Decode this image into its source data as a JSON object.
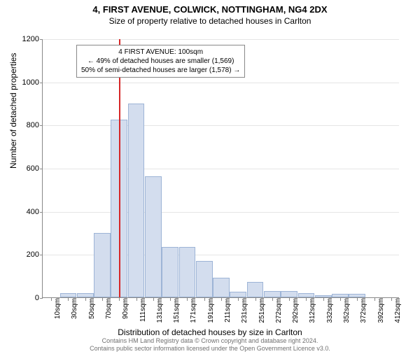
{
  "title_main": "4, FIRST AVENUE, COLWICK, NOTTINGHAM, NG4 2DX",
  "title_sub": "Size of property relative to detached houses in Carlton",
  "y_axis_label": "Number of detached properties",
  "x_axis_label": "Distribution of detached houses by size in Carlton",
  "chart": {
    "type": "histogram",
    "y_max": 1200,
    "y_ticks": [
      0,
      200,
      400,
      600,
      800,
      1000,
      1200
    ],
    "x_labels": [
      "10sqm",
      "30sqm",
      "50sqm",
      "70sqm",
      "90sqm",
      "111sqm",
      "131sqm",
      "151sqm",
      "171sqm",
      "191sqm",
      "211sqm",
      "231sqm",
      "251sqm",
      "272sqm",
      "292sqm",
      "312sqm",
      "332sqm",
      "352sqm",
      "372sqm",
      "392sqm",
      "412sqm"
    ],
    "values": [
      0,
      18,
      18,
      300,
      825,
      900,
      560,
      235,
      235,
      170,
      90,
      25,
      70,
      30,
      30,
      20,
      10,
      15,
      15,
      0,
      0
    ],
    "bar_fill": "#d3ddee",
    "bar_stroke": "#9db4d6",
    "grid_color": "#e5e5e5",
    "axis_color": "#888888",
    "background": "#ffffff",
    "reference_line": {
      "position_index": 4.5,
      "color": "#d62728"
    }
  },
  "info_box": {
    "line1": "4 FIRST AVENUE: 100sqm",
    "line2": "← 49% of detached houses are smaller (1,569)",
    "line3": "50% of semi-detached houses are larger (1,578) →"
  },
  "footer": {
    "line1": "Contains HM Land Registry data © Crown copyright and database right 2024.",
    "line2": "Contains public sector information licensed under the Open Government Licence v3.0."
  }
}
